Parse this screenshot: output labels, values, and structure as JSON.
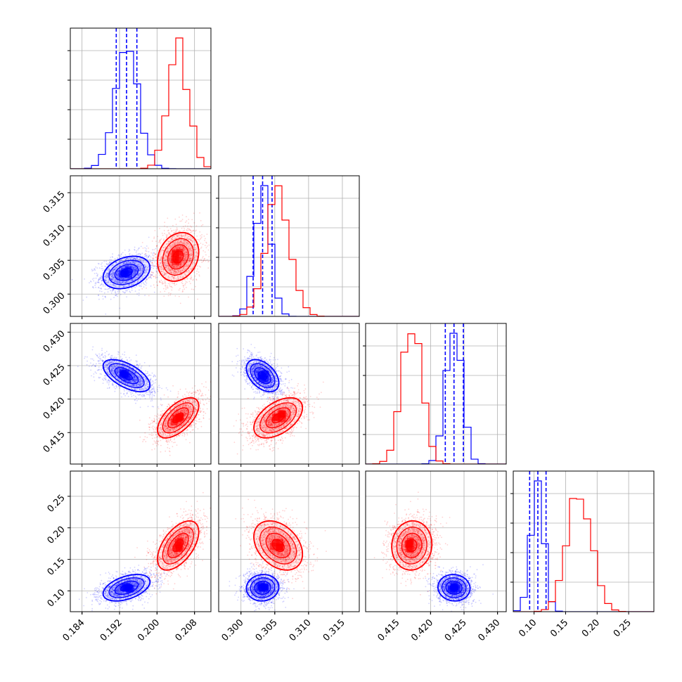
{
  "chart_data": {
    "type": "corner",
    "parameters": 4,
    "grid": true,
    "dashed_quantiles": "blue",
    "colors": {
      "blue": "#0000ff",
      "red": "#ff0000"
    },
    "axes": [
      {
        "range": [
          0.1815,
          0.2115
        ],
        "ticks": [
          0.184,
          0.192,
          0.2,
          0.208
        ],
        "tick_labels": [
          "0.184",
          "0.192",
          "0.200",
          "0.208"
        ]
      },
      {
        "range": [
          0.2967,
          0.3175
        ],
        "ticks": [
          0.3,
          0.305,
          0.31,
          0.315
        ],
        "tick_labels": [
          "0.300",
          "0.305",
          "0.310",
          "0.315"
        ]
      },
      {
        "range": [
          0.4103,
          0.4313
        ],
        "ticks": [
          0.415,
          0.42,
          0.425,
          0.43
        ],
        "tick_labels": [
          "0.415",
          "0.420",
          "0.425",
          "0.430"
        ]
      },
      {
        "range": [
          0.067,
          0.29
        ],
        "ticks": [
          0.1,
          0.15,
          0.2,
          0.25
        ],
        "tick_labels": [
          "0.10",
          "0.15",
          "0.20",
          "0.25"
        ]
      }
    ],
    "series": [
      {
        "color": "blue",
        "mean": [
          0.1935,
          0.3032,
          0.4235,
          0.105
        ],
        "sd": [
          0.0025,
          0.0012,
          0.0012,
          0.0105
        ],
        "corr": [
          [
            1,
            0.3,
            -0.6,
            0.45
          ],
          [
            0.3,
            1,
            -0.45,
            0.05
          ],
          [
            -0.6,
            -0.45,
            1,
            -0.05
          ],
          [
            0.45,
            0.05,
            -0.05,
            1
          ]
        ],
        "quantiles": [
          [
            0.1913,
            0.1935,
            0.1957
          ],
          [
            0.3018,
            0.3032,
            0.3046
          ],
          [
            0.4222,
            0.4235,
            0.4249
          ],
          [
            0.093,
            0.106,
            0.119
          ]
        ]
      },
      {
        "color": "red",
        "mean": [
          0.2045,
          0.3055,
          0.4172,
          0.172
        ],
        "sd": [
          0.0022,
          0.0018,
          0.0015,
          0.0195
        ],
        "corr": [
          [
            1,
            0.2,
            0.6,
            0.55
          ],
          [
            0.2,
            1,
            0.5,
            -0.35
          ],
          [
            0.6,
            0.5,
            1,
            0.05
          ],
          [
            0.55,
            -0.35,
            0.05,
            1
          ]
        ]
      }
    ]
  }
}
